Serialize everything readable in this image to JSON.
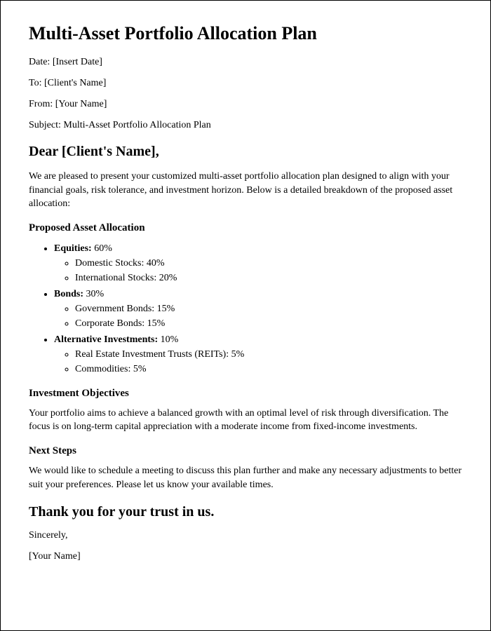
{
  "title": "Multi-Asset Portfolio Allocation Plan",
  "meta": {
    "date_label": "Date:",
    "date_value": "[Insert Date]",
    "to_label": "To:",
    "to_value": "[Client's Name]",
    "from_label": "From:",
    "from_value": "[Your Name]",
    "subject_label": "Subject:",
    "subject_value": "Multi-Asset Portfolio Allocation Plan"
  },
  "salutation": "Dear [Client's Name],",
  "intro": "We are pleased to present your customized multi-asset portfolio allocation plan designed to align with your financial goals, risk tolerance, and investment horizon. Below is a detailed breakdown of the proposed asset allocation:",
  "allocation_heading": "Proposed Asset Allocation",
  "allocation": {
    "group1_label": "Equities:",
    "group1_value": " 60%",
    "group1_item1": "Domestic Stocks: 40%",
    "group1_item2": "International Stocks: 20%",
    "group2_label": "Bonds:",
    "group2_value": " 30%",
    "group2_item1": "Government Bonds: 15%",
    "group2_item2": "Corporate Bonds: 15%",
    "group3_label": "Alternative Investments:",
    "group3_value": " 10%",
    "group3_item1": "Real Estate Investment Trusts (REITs): 5%",
    "group3_item2": "Commodities: 5%"
  },
  "objectives_heading": "Investment Objectives",
  "objectives_body": "Your portfolio aims to achieve a balanced growth with an optimal level of risk through diversification. The focus is on long-term capital appreciation with a moderate income from fixed-income investments.",
  "next_heading": "Next Steps",
  "next_body": "We would like to schedule a meeting to discuss this plan further and make any necessary adjustments to better suit your preferences. Please let us know your available times.",
  "thanks": "Thank you for your trust in us.",
  "closing": "Sincerely,",
  "signature": "[Your Name]"
}
